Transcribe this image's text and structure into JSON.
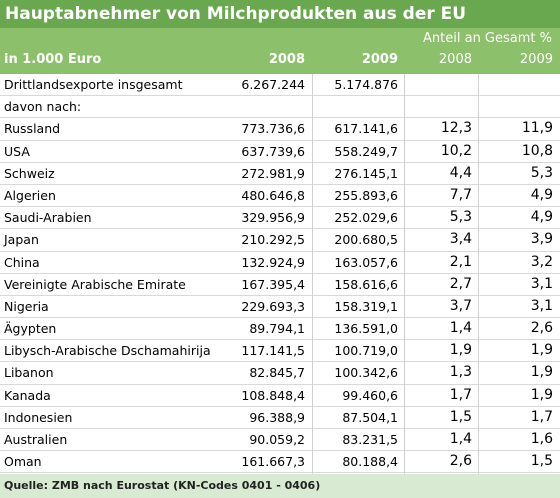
{
  "header": {
    "title": "Hauptabnehmer von Milchprodukten aus der EU"
  },
  "table": {
    "group_header": "Anteil an Gesamt %",
    "columns": [
      "in 1.000 Euro",
      "2008",
      "2009",
      "2008",
      "2009"
    ],
    "rows": [
      [
        "Drittlandsexporte insgesamt",
        "6.267.244",
        "5.174.876"
      ],
      [
        "davon nach:"
      ],
      [
        "Russland",
        "773.736,6",
        "617.141,6",
        "12,3",
        "11,9"
      ],
      [
        "USA",
        "637.739,6",
        "558.249,7",
        "10,2",
        "10,8"
      ],
      [
        "Schweiz",
        "272.981,9",
        "276.145,1",
        "4,4",
        "5,3"
      ],
      [
        "Algerien",
        "480.646,8",
        "255.893,6",
        "7,7",
        "4,9"
      ],
      [
        "Saudi-Arabien",
        "329.956,9",
        "252.029,6",
        "5,3",
        "4,9"
      ],
      [
        "Japan",
        "210.292,5",
        "200.680,5",
        "3,4",
        "3,9"
      ],
      [
        "China",
        "132.924,9",
        "163.057,6",
        "2,1",
        "3,2"
      ],
      [
        "Vereinigte Arabische Emirate",
        "167.395,4",
        "158.616,6",
        "2,7",
        "3,1"
      ],
      [
        "Nigeria",
        "229.693,3",
        "158.319,1",
        "3,7",
        "3,1"
      ],
      [
        "Ägypten",
        "89.794,1",
        "136.591,0",
        "1,4",
        "2,6"
      ],
      [
        "Libysch-Arabische Dschamahirija",
        "117.141,5",
        "100.719,0",
        "1,9",
        "1,9"
      ],
      [
        "Libanon",
        "82.845,7",
        "100.342,6",
        "1,3",
        "1,9"
      ],
      [
        "Kanada",
        "108.848,4",
        "99.460,6",
        "1,7",
        "1,9"
      ],
      [
        "Indonesien",
        "96.388,9",
        "87.504,1",
        "1,5",
        "1,7"
      ],
      [
        "Australien",
        "90.059,2",
        "83.231,5",
        "1,4",
        "1,6"
      ],
      [
        "Oman",
        "161.667,3",
        "80.188,4",
        "2,6",
        "1,5"
      ]
    ]
  },
  "footer": {
    "source": "Quelle: ZMB nach Eurostat (KN-Codes 0401 - 0406)"
  }
}
